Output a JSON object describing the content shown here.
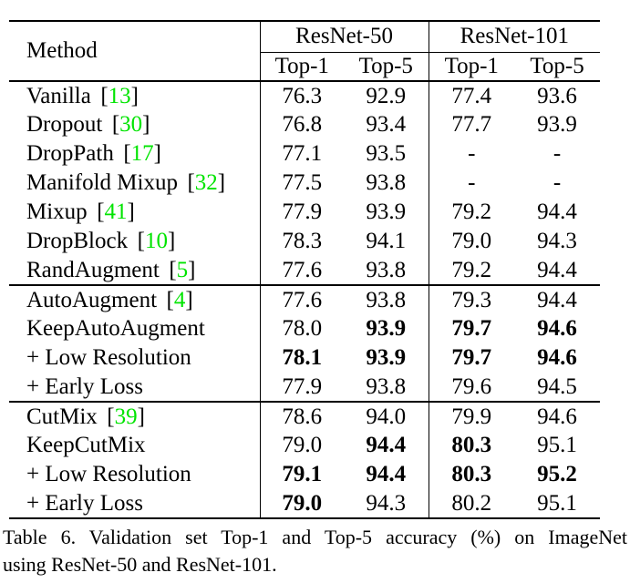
{
  "table": {
    "method_header": "Method",
    "column_groups": [
      {
        "label": "ResNet-50",
        "sub": [
          "Top-1",
          "Top-5"
        ]
      },
      {
        "label": "ResNet-101",
        "sub": [
          "Top-1",
          "Top-5"
        ]
      }
    ],
    "sections": [
      {
        "rows": [
          {
            "method": "Vanilla",
            "cite": "13",
            "values": [
              "76.3",
              "92.9",
              "77.4",
              "93.6"
            ],
            "bold": [
              false,
              false,
              false,
              false
            ]
          },
          {
            "method": "Dropout",
            "cite": "30",
            "values": [
              "76.8",
              "93.4",
              "77.7",
              "93.9"
            ],
            "bold": [
              false,
              false,
              false,
              false
            ]
          },
          {
            "method": "DropPath",
            "cite": "17",
            "values": [
              "77.1",
              "93.5",
              "-",
              "-"
            ],
            "bold": [
              false,
              false,
              false,
              false
            ]
          },
          {
            "method": "Manifold Mixup",
            "cite": "32",
            "values": [
              "77.5",
              "93.8",
              "-",
              "-"
            ],
            "bold": [
              false,
              false,
              false,
              false
            ]
          },
          {
            "method": "Mixup",
            "cite": "41",
            "values": [
              "77.9",
              "93.9",
              "79.2",
              "94.4"
            ],
            "bold": [
              false,
              false,
              false,
              false
            ]
          },
          {
            "method": "DropBlock",
            "cite": "10",
            "values": [
              "78.3",
              "94.1",
              "79.0",
              "94.3"
            ],
            "bold": [
              false,
              false,
              false,
              false
            ]
          },
          {
            "method": "RandAugment",
            "cite": "5",
            "values": [
              "77.6",
              "93.8",
              "79.2",
              "94.4"
            ],
            "bold": [
              false,
              false,
              false,
              false
            ]
          }
        ]
      },
      {
        "rows": [
          {
            "method": "AutoAugment",
            "cite": "4",
            "values": [
              "77.6",
              "93.8",
              "79.3",
              "94.4"
            ],
            "bold": [
              false,
              false,
              false,
              false
            ]
          },
          {
            "method": "KeepAutoAugment",
            "cite": "",
            "values": [
              "78.0",
              "93.9",
              "79.7",
              "94.6"
            ],
            "bold": [
              false,
              true,
              true,
              true
            ]
          },
          {
            "method": "+ Low Resolution",
            "cite": "",
            "values": [
              "78.1",
              "93.9",
              "79.7",
              "94.6"
            ],
            "bold": [
              true,
              true,
              true,
              true
            ]
          },
          {
            "method": "+ Early Loss",
            "cite": "",
            "values": [
              "77.9",
              "93.8",
              "79.6",
              "94.5"
            ],
            "bold": [
              false,
              false,
              false,
              false
            ]
          }
        ]
      },
      {
        "rows": [
          {
            "method": "CutMix",
            "cite": "39",
            "values": [
              "78.6",
              "94.0",
              "79.9",
              "94.6"
            ],
            "bold": [
              false,
              false,
              false,
              false
            ]
          },
          {
            "method": "KeepCutMix",
            "cite": "",
            "values": [
              "79.0",
              "94.4",
              "80.3",
              "95.1"
            ],
            "bold": [
              false,
              true,
              true,
              false
            ]
          },
          {
            "method": "+ Low Resolution",
            "cite": "",
            "values": [
              "79.1",
              "94.4",
              "80.3",
              "95.2"
            ],
            "bold": [
              true,
              true,
              true,
              true
            ]
          },
          {
            "method": "+ Early Loss",
            "cite": "",
            "values": [
              "79.0",
              "94.3",
              "80.2",
              "95.1"
            ],
            "bold": [
              true,
              false,
              false,
              false
            ]
          }
        ]
      }
    ]
  },
  "caption": {
    "lines": [
      "Table 6. Validation set Top-1 and Top-5 accuracy (%) on ImageNet",
      "using ResNet-50 and ResNet-101."
    ]
  },
  "colors": {
    "citation_green": "#00e400",
    "text": "#000000",
    "background": "#ffffff"
  }
}
